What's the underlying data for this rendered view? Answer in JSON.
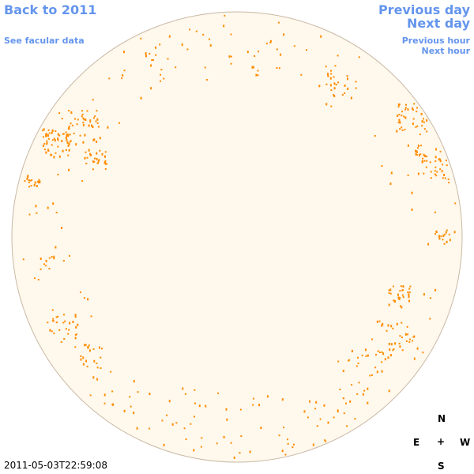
{
  "nav": {
    "back_label": "Back to 2011",
    "facular_label": "See facular data",
    "prev_day_label": "Previous day",
    "next_day_label": "Next day",
    "prev_hour_label": "Previous hour",
    "next_hour_label": "Next hour"
  },
  "timestamp": "2011-05-03T22:59:08",
  "compass": {
    "north": "N",
    "east": "E",
    "center": "+",
    "west": "W",
    "south": "S"
  },
  "colors": {
    "link": "#6495ed",
    "disk_fill": "#fff8ec",
    "disk_stroke": "#c8b9a6",
    "spot": "#ff8c00"
  }
}
